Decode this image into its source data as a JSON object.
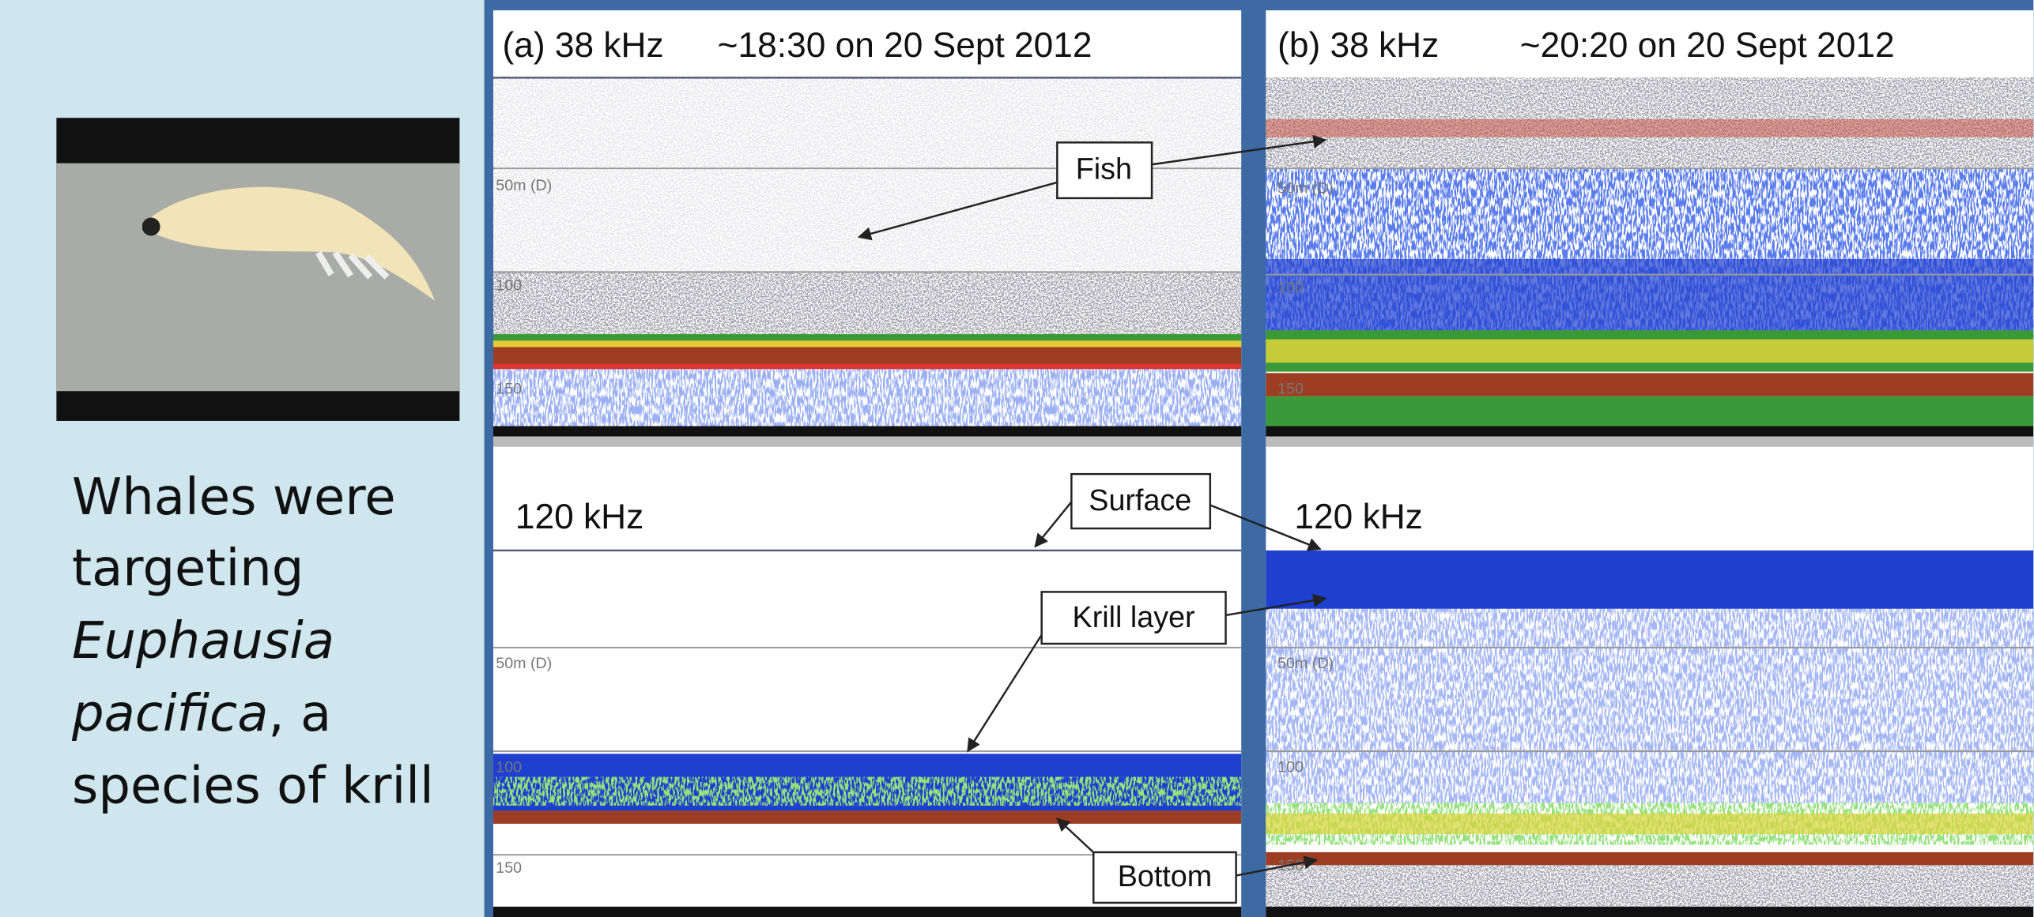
{
  "caption": {
    "lines": [
      "Whales were",
      "targeting",
      "Euphausia",
      "pacifica",
      ", a",
      "species  of krill"
    ]
  },
  "panels": [
    {
      "title": "(a) 38 kHz",
      "time": "~18:30 on 20 Sept 2012",
      "lower_title": "120 kHz",
      "upper_depths": [
        "50m (D)",
        "100",
        "150"
      ],
      "lower_depths": [
        "50m (D)",
        "100",
        "150"
      ]
    },
    {
      "title": "(b) 38 kHz",
      "time": "~20:20 on 20 Sept 2012",
      "lower_title": "120 kHz",
      "upper_depths": [
        "50m (D)",
        "100",
        "150"
      ],
      "lower_depths": [
        "50m (D)",
        "100",
        "150"
      ]
    }
  ],
  "callouts": {
    "fish": "Fish",
    "surface": "Surface",
    "krill": "Krill layer",
    "bottom": "Bottom"
  }
}
